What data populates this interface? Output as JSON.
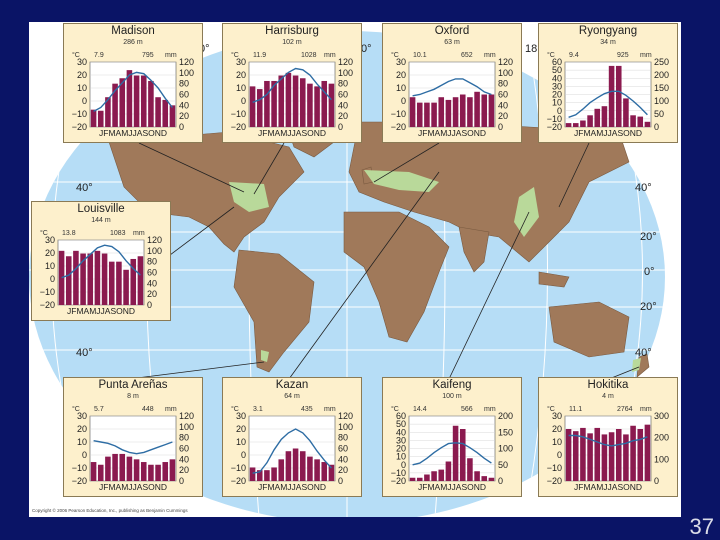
{
  "copyright": "Copyright © 2006 Pearson Education, Inc., publishing as Benjamin Cummings",
  "page_number": "37",
  "degree_labels": {
    "top_0": "0°",
    "top_180": "18",
    "top_extra": "0°",
    "left_40n": "40°",
    "left_40s": "40°",
    "right_40n": "40°",
    "right_20n": "20°",
    "right_0": "0°",
    "right_20s": "20°",
    "right_40s": "40°"
  },
  "colors": {
    "background": "#0a1466",
    "ocean": "#b6ddf6",
    "land": "#a0795a",
    "climate_region": "#b9d99a",
    "panel": "#fdf0cc",
    "precip_bar": "#8b1a4f",
    "temp_line": "#2e6da4"
  },
  "month_labels": "J F M A M J J A S O N D",
  "stations": [
    {
      "id": "madison",
      "name": "Madison",
      "elevation": "286 m",
      "mean_temp": "7.9",
      "annual_precip": "795",
      "unit_c": "°C",
      "unit_mm": "mm",
      "temp_ticks": [
        "30",
        "20",
        "10",
        "0",
        "−10",
        "−20"
      ],
      "precip_ticks": [
        "120",
        "100",
        "80",
        "60",
        "40",
        "20",
        "0"
      ],
      "temp_range": [
        -20,
        30
      ],
      "precip_range": [
        0,
        120
      ],
      "temp": [
        -8,
        -5,
        1,
        8,
        14,
        20,
        22,
        21,
        16,
        10,
        2,
        -5
      ],
      "precip": [
        32,
        30,
        55,
        80,
        90,
        105,
        95,
        95,
        85,
        55,
        50,
        40
      ]
    },
    {
      "id": "harrisburg",
      "name": "Harrisburg",
      "elevation": "102 m",
      "mean_temp": "11.9",
      "annual_precip": "1028",
      "unit_c": "°C",
      "unit_mm": "mm",
      "temp_ticks": [
        "30",
        "20",
        "10",
        "0",
        "−10",
        "−20"
      ],
      "precip_ticks": [
        "120",
        "100",
        "80",
        "60",
        "40",
        "20",
        "0"
      ],
      "temp_range": [
        -20,
        30
      ],
      "precip_range": [
        0,
        120
      ],
      "temp": [
        -1,
        1,
        5,
        12,
        17,
        22,
        25,
        24,
        20,
        13,
        7,
        1
      ],
      "precip": [
        75,
        70,
        85,
        85,
        95,
        100,
        95,
        90,
        80,
        75,
        85,
        80
      ]
    },
    {
      "id": "oxford",
      "name": "Oxford",
      "elevation": "63 m",
      "mean_temp": "10.1",
      "annual_precip": "652",
      "unit_c": "°C",
      "unit_mm": "mm",
      "temp_ticks": [
        "30",
        "20",
        "10",
        "0",
        "−10",
        "−20"
      ],
      "precip_ticks": [
        "120",
        "100",
        "80",
        "60",
        "40",
        "20",
        "0"
      ],
      "temp_range": [
        -20,
        30
      ],
      "precip_range": [
        0,
        120
      ],
      "temp": [
        4,
        5,
        7,
        9,
        12,
        15,
        17,
        17,
        14,
        11,
        7,
        5
      ],
      "precip": [
        55,
        45,
        45,
        45,
        55,
        50,
        55,
        60,
        55,
        65,
        60,
        60
      ]
    },
    {
      "id": "ryongyang",
      "name": "Ryongyang",
      "elevation": "34 m",
      "mean_temp": "9.4",
      "annual_precip": "925",
      "unit_c": "°C",
      "unit_mm": "mm",
      "temp_ticks": [
        "60",
        "50",
        "40",
        "30",
        "20",
        "10",
        "0",
        "−10",
        "−20"
      ],
      "temp_tick_values": [
        60,
        50,
        40,
        30,
        20,
        10,
        0,
        -10,
        -20
      ],
      "precip_ticks": [
        "250",
        "200",
        "150",
        "100",
        "50",
        "0"
      ],
      "temp_range": [
        -20,
        60
      ],
      "precip_range": [
        0,
        250
      ],
      "temp": [
        -8,
        -5,
        2,
        10,
        16,
        21,
        24,
        24,
        19,
        12,
        4,
        -5
      ],
      "precip": [
        15,
        15,
        25,
        45,
        70,
        80,
        235,
        235,
        110,
        45,
        40,
        20
      ]
    },
    {
      "id": "louisville",
      "name": "Louisville",
      "elevation": "144 m",
      "mean_temp": "13.8",
      "annual_precip": "1083",
      "unit_c": "°C",
      "unit_mm": "mm",
      "temp_ticks": [
        "30",
        "20",
        "10",
        "0",
        "−10",
        "−20"
      ],
      "precip_ticks": [
        "120",
        "100",
        "80",
        "60",
        "40",
        "20",
        "0"
      ],
      "temp_range": [
        -20,
        30
      ],
      "precip_range": [
        0,
        120
      ],
      "temp": [
        1,
        3,
        8,
        14,
        19,
        24,
        26,
        25,
        21,
        14,
        8,
        3
      ],
      "precip": [
        100,
        90,
        100,
        95,
        95,
        100,
        95,
        80,
        80,
        65,
        85,
        90
      ]
    },
    {
      "id": "punta-arenas",
      "name": "Punta Areñas",
      "elevation": "8 m",
      "mean_temp": "5.7",
      "annual_precip": "448",
      "unit_c": "°C",
      "unit_mm": "mm",
      "temp_ticks": [
        "30",
        "20",
        "10",
        "0",
        "−10",
        "−20"
      ],
      "precip_ticks": [
        "120",
        "100",
        "80",
        "60",
        "40",
        "20",
        "0"
      ],
      "temp_range": [
        -20,
        30
      ],
      "precip_range": [
        0,
        120
      ],
      "temp": [
        11,
        10,
        9,
        7,
        4,
        2,
        1,
        2,
        4,
        6,
        8,
        10
      ],
      "precip": [
        35,
        30,
        45,
        50,
        50,
        45,
        40,
        35,
        30,
        30,
        35,
        40
      ]
    },
    {
      "id": "kazan",
      "name": "Kazan",
      "elevation": "64 m",
      "mean_temp": "3.1",
      "annual_precip": "435",
      "unit_c": "°C",
      "unit_mm": "mm",
      "temp_ticks": [
        "30",
        "20",
        "10",
        "0",
        "−10",
        "−20"
      ],
      "precip_ticks": [
        "120",
        "100",
        "80",
        "60",
        "40",
        "20",
        "0"
      ],
      "temp_range": [
        -20,
        30
      ],
      "precip_range": [
        0,
        120
      ],
      "temp": [
        -14,
        -13,
        -6,
        4,
        12,
        17,
        20,
        17,
        11,
        3,
        -4,
        -10
      ],
      "precip": [
        25,
        20,
        20,
        25,
        40,
        55,
        60,
        55,
        45,
        40,
        35,
        30
      ]
    },
    {
      "id": "kaifeng",
      "name": "Kaifeng",
      "elevation": "100 m",
      "mean_temp": "14.4",
      "annual_precip": "566",
      "unit_c": "°C",
      "unit_mm": "mm",
      "temp_ticks": [
        "60",
        "50",
        "40",
        "30",
        "20",
        "10",
        "0",
        "−10",
        "−20"
      ],
      "temp_tick_values": [
        60,
        50,
        40,
        30,
        20,
        10,
        0,
        -10,
        -20
      ],
      "precip_ticks": [
        "200",
        "150",
        "100",
        "50",
        "0"
      ],
      "temp_range": [
        -20,
        60
      ],
      "precip_range": [
        0,
        200
      ],
      "temp": [
        0,
        2,
        8,
        15,
        21,
        26,
        27,
        26,
        21,
        15,
        8,
        2
      ],
      "precip": [
        10,
        10,
        20,
        30,
        35,
        60,
        170,
        160,
        70,
        30,
        15,
        10
      ]
    },
    {
      "id": "hokitika",
      "name": "Hokitika",
      "elevation": "4 m",
      "mean_temp": "11.1",
      "annual_precip": "2764",
      "unit_c": "°C",
      "unit_mm": "mm",
      "temp_ticks": [
        "30",
        "20",
        "10",
        "0",
        "−10",
        "−20"
      ],
      "precip_ticks": [
        "300",
        "200",
        "100",
        "0"
      ],
      "temp_range": [
        -20,
        30
      ],
      "precip_range": [
        0,
        300
      ],
      "temp": [
        15,
        15,
        14,
        12,
        10,
        8,
        7,
        8,
        9,
        11,
        12,
        14
      ],
      "precip": [
        240,
        230,
        245,
        220,
        245,
        215,
        225,
        240,
        215,
        255,
        240,
        260
      ]
    }
  ]
}
